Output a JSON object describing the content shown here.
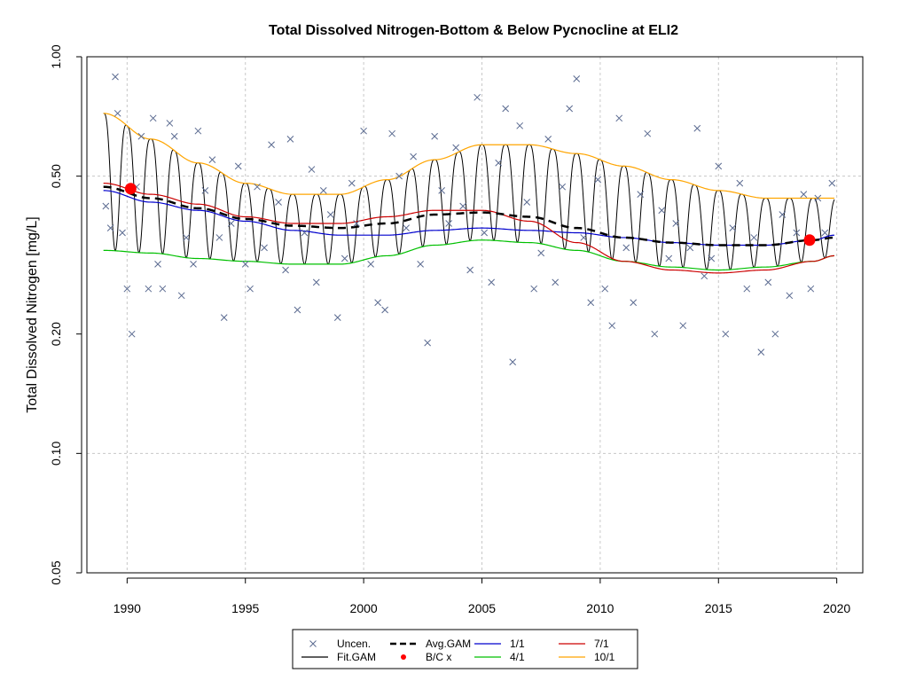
{
  "chart_data": {
    "type": "line",
    "title": "Total Dissolved Nitrogen-Bottom & Below Pycnocline at ELI2",
    "xlabel": "",
    "ylabel": "Total Dissolved Nitrogen [mg/L]",
    "y_scale": "log",
    "ylim": [
      0.05,
      1.0
    ],
    "xlim": [
      1988.3,
      2021.1
    ],
    "x_ticks": [
      1990,
      1995,
      2000,
      2005,
      2010,
      2015,
      2020
    ],
    "x_tick_labels": [
      "1990",
      "1995",
      "2000",
      "2005",
      "2010",
      "2015",
      "2020"
    ],
    "y_ticks": [
      0.05,
      0.1,
      0.2,
      0.5,
      1.0
    ],
    "y_tick_labels": [
      "0.05",
      "0.10",
      "0.20",
      "0.50",
      "1.00"
    ],
    "grid": true,
    "grid_x": [
      1990,
      1995,
      2000,
      2005,
      2010,
      2015,
      2020
    ],
    "grid_y": [
      0.1,
      0.5
    ],
    "series": [
      {
        "name": "1/1",
        "color": "#0000cd",
        "x": [
          1989,
          1991,
          1993,
          1995,
          1997,
          1999,
          2001,
          2003,
          2005,
          2007,
          2009,
          2011,
          2013,
          2015,
          2017,
          2019,
          2019.9
        ],
        "y": [
          0.46,
          0.43,
          0.41,
          0.385,
          0.365,
          0.355,
          0.355,
          0.365,
          0.37,
          0.365,
          0.36,
          0.35,
          0.34,
          0.335,
          0.335,
          0.345,
          0.355
        ]
      },
      {
        "name": "4/1",
        "color": "#00c000",
        "x": [
          1989,
          1991,
          1993,
          1995,
          1997,
          1999,
          2001,
          2003,
          2005,
          2007,
          2009,
          2011,
          2013,
          2015,
          2017,
          2019,
          2019.9
        ],
        "y": [
          0.325,
          0.32,
          0.31,
          0.305,
          0.3,
          0.3,
          0.315,
          0.335,
          0.345,
          0.34,
          0.325,
          0.305,
          0.295,
          0.29,
          0.295,
          0.305,
          0.315
        ]
      },
      {
        "name": "7/1",
        "color": "#cc0000",
        "x": [
          1989,
          1991,
          1993,
          1995,
          1997,
          1999,
          2001,
          2003,
          2005,
          2007,
          2009,
          2011,
          2013,
          2015,
          2017,
          2019,
          2019.9
        ],
        "y": [
          0.48,
          0.45,
          0.425,
          0.395,
          0.38,
          0.38,
          0.395,
          0.41,
          0.41,
          0.385,
          0.34,
          0.305,
          0.29,
          0.285,
          0.29,
          0.305,
          0.315
        ]
      },
      {
        "name": "10/1",
        "color": "#ffa500",
        "x": [
          1989,
          1991,
          1993,
          1995,
          1997,
          1999,
          2001,
          2003,
          2005,
          2007,
          2009,
          2011,
          2013,
          2015,
          2017,
          2019,
          2019.9
        ],
        "y": [
          0.72,
          0.62,
          0.54,
          0.48,
          0.45,
          0.45,
          0.49,
          0.55,
          0.6,
          0.6,
          0.57,
          0.53,
          0.49,
          0.46,
          0.44,
          0.44,
          0.44
        ]
      },
      {
        "name": "Avg.GAM",
        "color": "#000000",
        "dashed": true,
        "x": [
          1989,
          1991,
          1993,
          1995,
          1997,
          1999,
          2001,
          2003,
          2005,
          2007,
          2009,
          2011,
          2013,
          2015,
          2017,
          2019,
          2019.9
        ],
        "y": [
          0.47,
          0.44,
          0.415,
          0.39,
          0.375,
          0.37,
          0.38,
          0.4,
          0.405,
          0.395,
          0.37,
          0.35,
          0.34,
          0.335,
          0.335,
          0.345,
          0.35
        ]
      }
    ],
    "fit_gam": {
      "name": "Fit.GAM",
      "color": "#000000",
      "seasonal_pattern": "annual cycle oscillating between the 4/1 (low) and 10/1 (high) curves"
    },
    "uncensored_points": {
      "name": "Uncen.",
      "color": "#5a6a90",
      "marker": "x",
      "x": [
        1989.1,
        1989.3,
        1989.5,
        1989.6,
        1989.8,
        1990.0,
        1990.2,
        1990.4,
        1990.6,
        1990.9,
        1991.1,
        1991.3,
        1991.5,
        1991.8,
        1992.0,
        1992.3,
        1992.5,
        1992.8,
        1993.0,
        1993.3,
        1993.6,
        1993.9,
        1994.1,
        1994.4,
        1994.7,
        1995.0,
        1995.2,
        1995.5,
        1995.8,
        1996.1,
        1996.4,
        1996.7,
        1996.9,
        1997.2,
        1997.5,
        1997.8,
        1998.0,
        1998.3,
        1998.6,
        1998.9,
        1999.2,
        1999.5,
        1999.7,
        2000.0,
        2000.3,
        2000.6,
        2000.9,
        2001.2,
        2001.5,
        2001.8,
        2002.1,
        2002.4,
        2002.7,
        2003.0,
        2003.3,
        2003.6,
        2003.9,
        2004.2,
        2004.5,
        2004.8,
        2005.1,
        2005.4,
        2005.7,
        2006.0,
        2006.3,
        2006.6,
        2006.9,
        2007.2,
        2007.5,
        2007.8,
        2008.1,
        2008.4,
        2008.7,
        2009.0,
        2009.3,
        2009.6,
        2009.9,
        2010.2,
        2010.5,
        2010.8,
        2011.1,
        2011.4,
        2011.7,
        2012.0,
        2012.3,
        2012.6,
        2012.9,
        2013.2,
        2013.5,
        2013.8,
        2014.1,
        2014.4,
        2014.7,
        2015.0,
        2015.3,
        2015.6,
        2015.9,
        2016.2,
        2016.5,
        2016.8,
        2017.1,
        2017.4,
        2017.7,
        2018.0,
        2018.3,
        2018.6,
        2018.9,
        2019.2,
        2019.5,
        2019.8
      ],
      "y": [
        0.42,
        0.37,
        0.89,
        0.72,
        0.36,
        0.26,
        0.2,
        0.47,
        0.63,
        0.26,
        0.7,
        0.3,
        0.26,
        0.68,
        0.63,
        0.25,
        0.35,
        0.3,
        0.65,
        0.46,
        0.55,
        0.35,
        0.22,
        0.38,
        0.53,
        0.3,
        0.26,
        0.47,
        0.33,
        0.6,
        0.43,
        0.29,
        0.62,
        0.23,
        0.36,
        0.52,
        0.27,
        0.46,
        0.4,
        0.22,
        0.31,
        0.48,
        0.38,
        0.65,
        0.3,
        0.24,
        0.23,
        0.64,
        0.5,
        0.37,
        0.56,
        0.3,
        0.19,
        0.63,
        0.46,
        0.38,
        0.59,
        0.42,
        0.29,
        0.79,
        0.36,
        0.27,
        0.54,
        0.74,
        0.17,
        0.67,
        0.43,
        0.26,
        0.32,
        0.62,
        0.27,
        0.47,
        0.74,
        0.88,
        0.35,
        0.24,
        0.49,
        0.26,
        0.21,
        0.7,
        0.33,
        0.24,
        0.45,
        0.64,
        0.2,
        0.41,
        0.31,
        0.38,
        0.21,
        0.33,
        0.66,
        0.28,
        0.31,
        0.53,
        0.2,
        0.37,
        0.48,
        0.26,
        0.35,
        0.18,
        0.27,
        0.2,
        0.4,
        0.25,
        0.36,
        0.45,
        0.26,
        0.44,
        0.36,
        0.48
      ]
    },
    "bc_points": {
      "name": "B/C x",
      "color": "#ff0000",
      "x": [
        1990.15,
        2018.85
      ],
      "y": [
        0.465,
        0.345
      ]
    }
  },
  "legend": {
    "placement": "bottom-center",
    "items": [
      {
        "label": "Uncen.",
        "symbol": "x",
        "color": "#5a6a90"
      },
      {
        "label": "Fit.GAM",
        "symbol": "line",
        "color": "#000000"
      },
      {
        "label": "Avg.GAM",
        "symbol": "dashed",
        "color": "#000000"
      },
      {
        "label": "B/C x",
        "symbol": "dot",
        "color": "#ff0000"
      },
      {
        "label": "1/1",
        "symbol": "line",
        "color": "#0000cd"
      },
      {
        "label": "4/1",
        "symbol": "line",
        "color": "#00c000"
      },
      {
        "label": "7/1",
        "symbol": "line",
        "color": "#cc0000"
      },
      {
        "label": "10/1",
        "symbol": "line",
        "color": "#ffa500"
      }
    ]
  }
}
